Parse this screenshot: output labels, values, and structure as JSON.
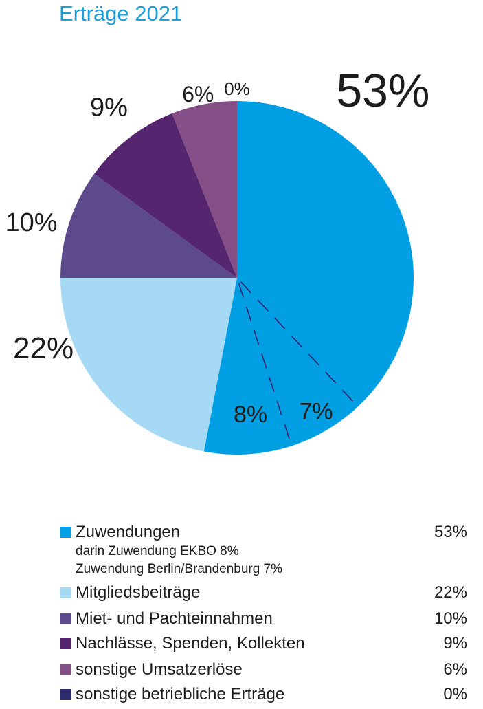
{
  "title": "Erträge 2021",
  "chart_data": {
    "type": "pie",
    "title": "Erträge 2021",
    "slices": [
      {
        "label": "Zuwendungen",
        "value": 53,
        "display": "53%",
        "color": "#009fe3"
      },
      {
        "label": "Mitgliedsbeiträge",
        "value": 22,
        "display": "22%",
        "color": "#a5d9f4"
      },
      {
        "label": "Miet- und Pachteinnahmen",
        "value": 10,
        "display": "10%",
        "color": "#5c4a8c"
      },
      {
        "label": "Nachlässe, Spenden, Kollekten",
        "value": 9,
        "display": "9%",
        "color": "#55266f"
      },
      {
        "label": "sonstige Umsatzerlöse",
        "value": 6,
        "display": "6%",
        "color": "#844f87"
      },
      {
        "label": "sonstige betriebliche Erträge",
        "value": 0,
        "display": "0%",
        "color": "#2e2a6e"
      }
    ],
    "sub_slices": [
      {
        "label": "darin Zuwendung EKBO",
        "value": 8,
        "display": "8%"
      },
      {
        "label": "Zuwendung Berlin/Brandenburg",
        "value": 7,
        "display": "7%"
      }
    ]
  },
  "legend": {
    "items": [
      {
        "label": "Zuwendungen",
        "pct": "53%",
        "color": "#009fe3"
      },
      {
        "label": "Mitgliedsbeiträge",
        "pct": "22%",
        "color": "#a5d9f4"
      },
      {
        "label": "Miet- und Pachteinnahmen",
        "pct": "10%",
        "color": "#5c4a8c"
      },
      {
        "label": "Nachlässe, Spenden, Kollekten",
        "pct": "9%",
        "color": "#55266f"
      },
      {
        "label": "sonstige Umsatzerlöse",
        "pct": "6%",
        "color": "#844f87"
      },
      {
        "label": "sonstige betriebliche Erträge",
        "pct": "0%",
        "color": "#2e2a6e"
      }
    ],
    "sub_line_1": "darin Zuwendung EKBO 8%",
    "sub_line_2": "Zuwendung Berlin/Brandenburg 7%"
  }
}
